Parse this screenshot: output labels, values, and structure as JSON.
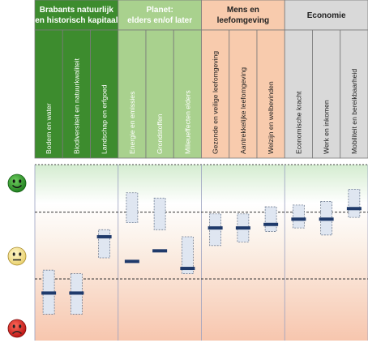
{
  "chart_data": {
    "type": "range",
    "groups": [
      {
        "title_lines": [
          "Brabants natuurlijk",
          "en historisch kapitaal"
        ],
        "color": "#3d8c2e",
        "title_color": "#ffffff"
      },
      {
        "title_lines": [
          "Planet:",
          "elders en/of later"
        ],
        "color": "#a9d18e",
        "title_color": "#ffffff"
      },
      {
        "title_lines": [
          "Mens en",
          "leefomgeving"
        ],
        "color": "#f8cbad",
        "title_color": "#222222"
      },
      {
        "title_lines": [
          "Economie"
        ],
        "color": "#d9d9d9",
        "title_color": "#222222"
      }
    ],
    "categories": [
      {
        "label": "Bodem en water",
        "group": 0,
        "low": 0.15,
        "high": 0.4,
        "value": 0.27
      },
      {
        "label": "Biodiversiteit en natuurkwaliteit",
        "group": 0,
        "low": 0.15,
        "high": 0.38,
        "value": 0.27
      },
      {
        "label": "Landschap en erfgoed",
        "group": 0,
        "low": 0.47,
        "high": 0.63,
        "value": 0.59
      },
      {
        "label": "Energie en emissies",
        "group": 1,
        "low": 0.67,
        "high": 0.84,
        "value": 0.45
      },
      {
        "label": "Grondstoffen",
        "group": 1,
        "low": 0.63,
        "high": 0.81,
        "value": 0.51
      },
      {
        "label": "Milieueffecten elders",
        "group": 1,
        "low": 0.38,
        "high": 0.59,
        "value": 0.41
      },
      {
        "label": "Gezonde en veilige leefomgeving",
        "group": 2,
        "low": 0.54,
        "high": 0.72,
        "value": 0.64
      },
      {
        "label": "Aantrekkelijke leefomgeving",
        "group": 2,
        "low": 0.56,
        "high": 0.72,
        "value": 0.64
      },
      {
        "label": "Welzijn en welbevinden",
        "group": 2,
        "low": 0.62,
        "high": 0.76,
        "value": 0.66
      },
      {
        "label": "Economische kracht",
        "group": 3,
        "low": 0.64,
        "high": 0.77,
        "value": 0.69
      },
      {
        "label": "Werk en inkomen",
        "group": 3,
        "low": 0.6,
        "high": 0.79,
        "value": 0.69
      },
      {
        "label": "Mobiliteit en bereikbaarheid",
        "group": 3,
        "low": 0.7,
        "high": 0.86,
        "value": 0.75
      }
    ],
    "thresholds": [
      0.73,
      0.35
    ],
    "scale": {
      "top": "good",
      "middle": "neutral",
      "bottom": "bad"
    },
    "ylim": [
      0,
      1
    ],
    "colors": {
      "good": "#2e9b2e",
      "neutral": "#f2e08c",
      "bad": "#e02020",
      "marker": "#1f3a6b",
      "range_fill": "#dfe6f1",
      "range_stroke": "#6c7a90"
    }
  }
}
